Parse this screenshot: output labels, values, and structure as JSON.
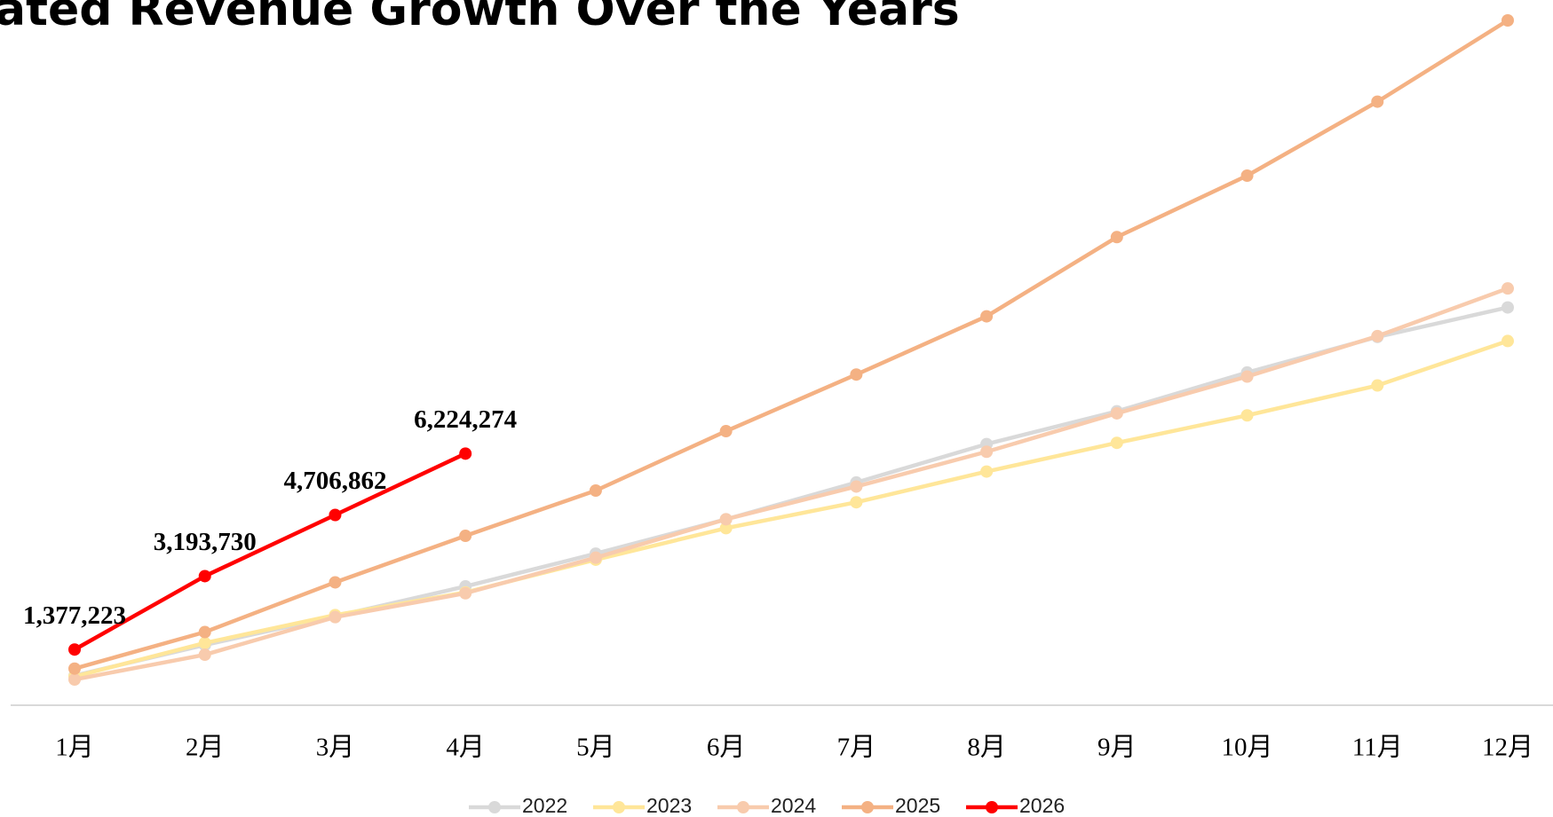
{
  "chart_data": {
    "type": "line",
    "title": "ated Revenue Growth Over the Years",
    "categories": [
      "1月",
      "2月",
      "3月",
      "4月",
      "5月",
      "6月",
      "7月",
      "8月",
      "9月",
      "10月",
      "11月",
      "12月"
    ],
    "series": [
      {
        "name": "2022",
        "color": "#d9d9d9",
        "values": [
          734000,
          1490000,
          2200000,
          2940000,
          3750000,
          4600000,
          5510000,
          6460000,
          7270000,
          8230000,
          9110000,
          9840000
        ]
      },
      {
        "name": "2023",
        "color": "#ffe699",
        "values": [
          710000,
          1540000,
          2230000,
          2790000,
          3600000,
          4380000,
          5020000,
          5780000,
          6490000,
          7170000,
          7910000,
          9010000
        ]
      },
      {
        "name": "2024",
        "color": "#f8cbad",
        "values": [
          636000,
          1250000,
          2180000,
          2770000,
          3650000,
          4600000,
          5410000,
          6270000,
          7220000,
          8130000,
          9130000,
          10310000
        ]
      },
      {
        "name": "2025",
        "color": "#f4b183",
        "values": [
          906000,
          1810000,
          3040000,
          4190000,
          5310000,
          6780000,
          8180000,
          9620000,
          11580000,
          13100000,
          14930000,
          16940000
        ]
      },
      {
        "name": "2026",
        "color": "#ff0000",
        "values": [
          1377223,
          3193730,
          4706862,
          6224274,
          null,
          null,
          null,
          null,
          null,
          null,
          null,
          null
        ],
        "value_labels": [
          "1,377,223",
          "3,193,730",
          "4,706,862",
          "6,224,274",
          null,
          null,
          null,
          null,
          null,
          null,
          null,
          null
        ]
      }
    ],
    "legend": "bottom"
  }
}
